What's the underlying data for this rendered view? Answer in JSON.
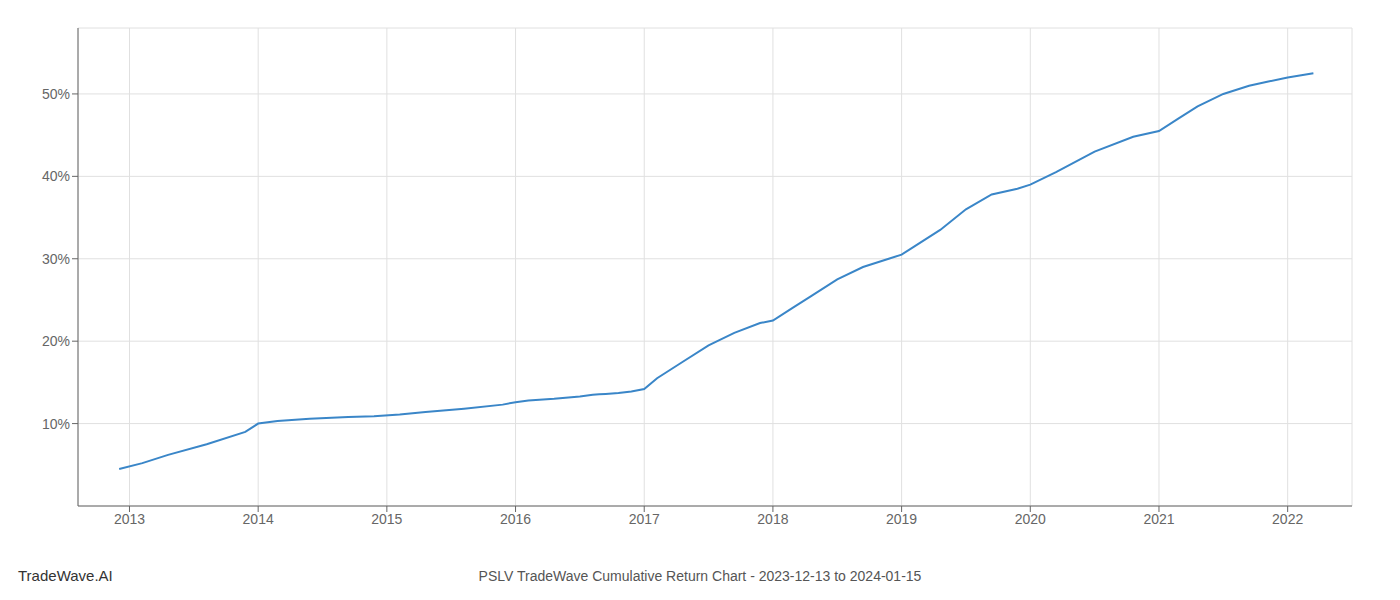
{
  "chart_data": {
    "type": "line",
    "title": "PSLV TradeWave Cumulative Return Chart - 2023-12-13 to 2024-01-15",
    "annotations": [
      "TradeWave.AI"
    ],
    "x": [
      2012.92,
      2013.1,
      2013.3,
      2013.6,
      2013.9,
      2014.0,
      2014.15,
      2014.4,
      2014.7,
      2014.9,
      2015.1,
      2015.3,
      2015.6,
      2015.9,
      2016.0,
      2016.1,
      2016.3,
      2016.5,
      2016.6,
      2016.65,
      2016.7,
      2016.75,
      2016.8,
      2016.9,
      2017.0,
      2017.1,
      2017.3,
      2017.5,
      2017.7,
      2017.9,
      2018.0,
      2018.15,
      2018.3,
      2018.5,
      2018.7,
      2018.9,
      2019.0,
      2019.1,
      2019.3,
      2019.5,
      2019.7,
      2019.9,
      2020.0,
      2020.2,
      2020.5,
      2020.8,
      2021.0,
      2021.15,
      2021.3,
      2021.5,
      2021.7,
      2021.85,
      2022.0,
      2022.2
    ],
    "values": [
      4.5,
      5.2,
      6.2,
      7.5,
      9.0,
      10.0,
      10.3,
      10.6,
      10.8,
      10.9,
      11.1,
      11.4,
      11.8,
      12.3,
      12.6,
      12.8,
      13.0,
      13.3,
      13.5,
      13.55,
      13.6,
      13.65,
      13.7,
      13.9,
      14.2,
      15.5,
      17.5,
      19.5,
      21.0,
      22.2,
      22.5,
      24.0,
      25.5,
      27.5,
      29.0,
      30.0,
      30.5,
      31.5,
      33.5,
      36.0,
      37.8,
      38.5,
      39.0,
      40.5,
      43.0,
      44.8,
      45.5,
      47.0,
      48.5,
      50.0,
      51.0,
      51.5,
      52.0,
      52.5
    ],
    "color": "#3a86c8",
    "xlim": [
      2012.6,
      2022.5
    ],
    "xticks": [
      2013,
      2014,
      2015,
      2016,
      2017,
      2018,
      2019,
      2020,
      2021,
      2022
    ],
    "ylim": [
      0,
      58
    ],
    "yticks": [
      {
        "value": 10,
        "label": "10%"
      },
      {
        "value": 20,
        "label": "20%"
      },
      {
        "value": 30,
        "label": "30%"
      },
      {
        "value": 40,
        "label": "40%"
      },
      {
        "value": 50,
        "label": "50%"
      }
    ],
    "grid": true
  }
}
